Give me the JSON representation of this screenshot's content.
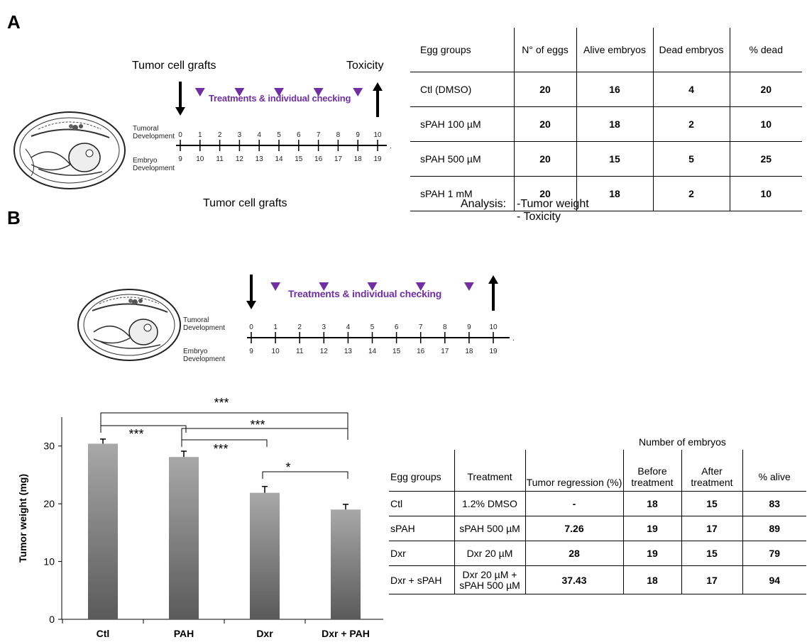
{
  "panel_a": {
    "letter": "A",
    "timeline": {
      "graft_label": "Tumor cell grafts",
      "end_label": "Toxicity",
      "caption": "Treatments & individual checking",
      "row1_label": [
        "Tumoral",
        "Development"
      ],
      "row2_label": [
        "Embryo",
        "Development"
      ],
      "tumoral_days": [
        "0",
        "1",
        "2",
        "3",
        "4",
        "5",
        "6",
        "7",
        "8",
        "9",
        "10"
      ],
      "embryo_days": [
        "9",
        "10",
        "11",
        "12",
        "13",
        "14",
        "15",
        "16",
        "17",
        "18",
        "19"
      ]
    },
    "table": {
      "headers": [
        "Egg groups",
        "N° of eggs",
        "Alive embryos",
        "Dead embryos",
        "% dead"
      ],
      "rows": [
        [
          "Ctl (DMSO)",
          "20",
          "16",
          "4",
          "20"
        ],
        [
          "sPAH 100 µM",
          "20",
          "18",
          "2",
          "10"
        ],
        [
          "sPAH 500 µM",
          "20",
          "15",
          "5",
          "25"
        ],
        [
          "sPAH 1 mM",
          "20",
          "18",
          "2",
          "10"
        ]
      ]
    }
  },
  "panel_b": {
    "letter": "B",
    "timeline": {
      "graft_label": "Tumor cell grafts",
      "end_label": "Analysis:",
      "end_items": [
        "-Tumor weight",
        "- Toxicity"
      ],
      "caption": "Treatments & individual checking",
      "row1_label": [
        "Tumoral",
        "Development"
      ],
      "row2_label": [
        "Embryo",
        "Development"
      ],
      "tumoral_days": [
        "0",
        "1",
        "2",
        "3",
        "4",
        "5",
        "6",
        "7",
        "8",
        "9",
        "10"
      ],
      "embryo_days": [
        "9",
        "10",
        "11",
        "12",
        "13",
        "14",
        "15",
        "16",
        "17",
        "18",
        "19"
      ]
    },
    "table": {
      "group_header": "Number of embryos",
      "headers": [
        "Egg groups",
        "Treatment",
        "Tumor regression (%)",
        "Before treatment",
        "After treatment",
        "% alive"
      ],
      "rows": [
        [
          "Ctl",
          "1.2% DMSO",
          "-",
          "18",
          "15",
          "83"
        ],
        [
          "sPAH",
          "sPAH 500 µM",
          "7.26",
          "19",
          "17",
          "89"
        ],
        [
          "Dxr",
          "Dxr 20 µM",
          "28",
          "19",
          "15",
          "79"
        ],
        [
          "Dxr + sPAH",
          "Dxr 20 µM + sPAH 500 µM",
          "37.43",
          "18",
          "17",
          "94"
        ]
      ]
    }
  },
  "chart_data": {
    "type": "bar",
    "categories": [
      "Ctl",
      "PAH",
      "Dxr",
      "Dxr + PAH"
    ],
    "values": [
      30.4,
      28.1,
      21.9,
      19.0
    ],
    "errors": [
      0.8,
      1.0,
      1.1,
      0.9
    ],
    "ylabel": "Tumor weight (mg)",
    "ylim": [
      0,
      35
    ],
    "yticks": [
      0,
      10,
      20,
      30
    ],
    "grid": false,
    "significance": [
      {
        "pair": [
          0,
          3
        ],
        "label": "***"
      },
      {
        "pair": [
          0,
          1
        ],
        "label": "***"
      },
      {
        "pair": [
          1,
          3
        ],
        "label": "***"
      },
      {
        "pair": [
          1,
          2
        ],
        "label": "***"
      },
      {
        "pair": [
          2,
          3
        ],
        "label": "*"
      }
    ],
    "colors": {
      "bar_top": "#a8a8a8",
      "bar_bottom": "#5a5a5a"
    }
  }
}
